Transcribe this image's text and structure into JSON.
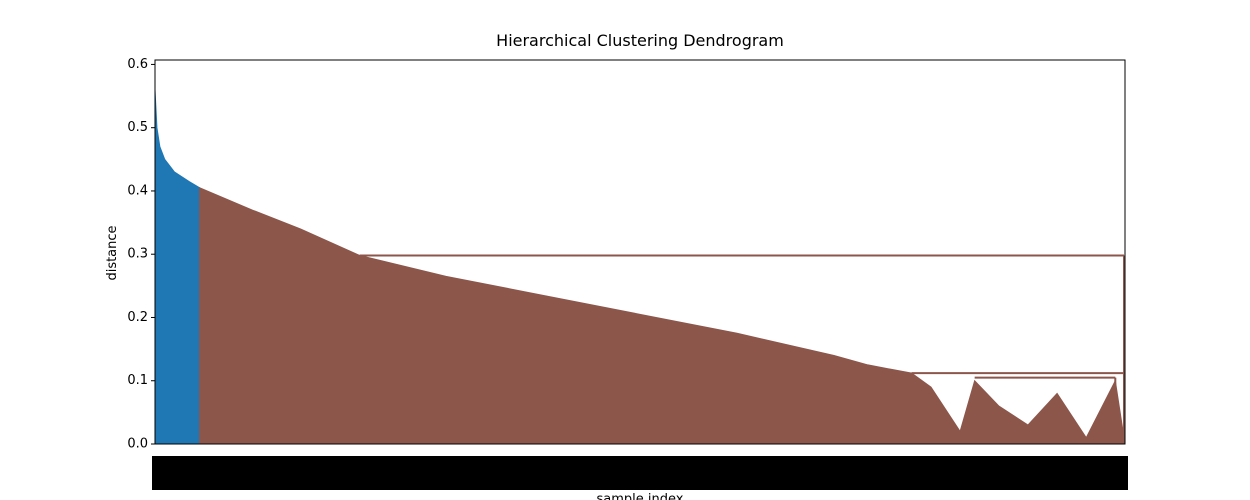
{
  "chart_data": {
    "type": "dendrogram",
    "title": "Hierarchical Clustering Dendrogram",
    "y_label": "distance",
    "x_label": "sample index",
    "xlim": [
      0,
      1000
    ],
    "ylim": [
      0,
      0.607
    ],
    "yticks": [
      {
        "value": 0,
        "label": "0.0"
      },
      {
        "value": 0.1,
        "label": "0.1"
      },
      {
        "value": 0.2,
        "label": "0.2"
      },
      {
        "value": 0.3,
        "label": "0.3"
      },
      {
        "value": 0.4,
        "label": "0.4"
      },
      {
        "value": 0.5,
        "label": "0.5"
      },
      {
        "value": 0.6,
        "label": "0.6"
      }
    ],
    "series": [
      {
        "color": "#1f77b4",
        "x": [
          0,
          2,
          5,
          10,
          20,
          35,
          46
        ],
        "values": [
          0.56,
          0.5,
          0.47,
          0.45,
          0.43,
          0.415,
          0.405
        ]
      },
      {
        "color": "#8c564b",
        "x": [
          46,
          100,
          150,
          211,
          300,
          400,
          500,
          600,
          700,
          735,
          780,
          800,
          830,
          845,
          870,
          900,
          930,
          960,
          990,
          999
        ],
        "values": [
          0.405,
          0.37,
          0.34,
          0.298,
          0.265,
          0.235,
          0.205,
          0.175,
          0.14,
          0.125,
          0.112,
          0.09,
          0.02,
          0.1,
          0.06,
          0.03,
          0.08,
          0.01,
          0.1,
          0.01
        ]
      }
    ],
    "merges": [
      {
        "color": "#8c564b",
        "x": [
          211,
          999
        ],
        "value": 0.298
      },
      {
        "color": "#8c564b",
        "x": [
          780,
          999
        ],
        "value": 0.112
      },
      {
        "color": "#8c564b",
        "x": [
          845,
          990
        ],
        "value": 0.105
      }
    ]
  }
}
